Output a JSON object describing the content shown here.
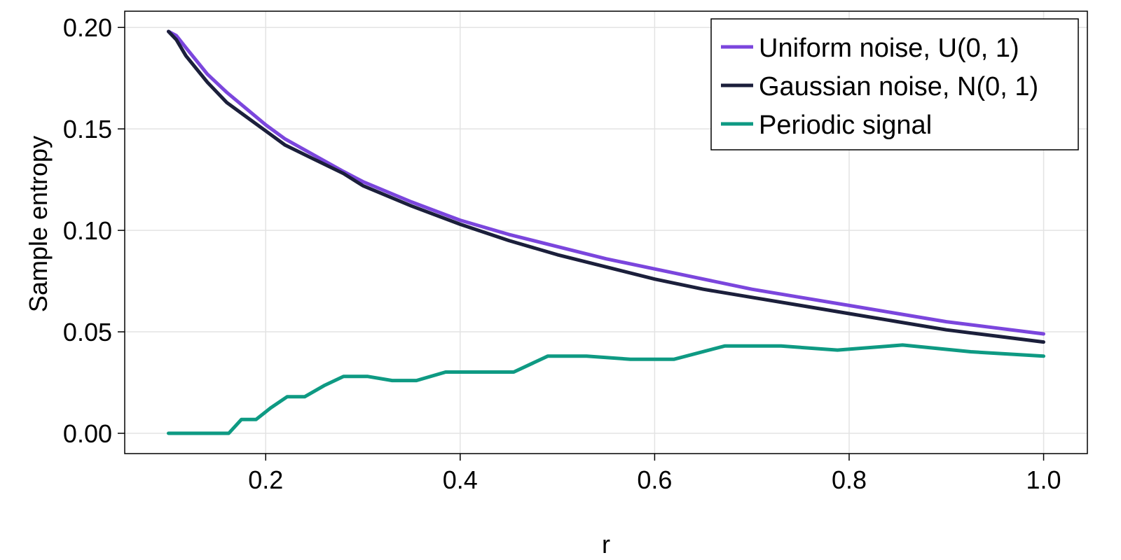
{
  "chart_data": {
    "type": "line",
    "title": "",
    "xlabel": "r",
    "ylabel": "Sample entropy",
    "xlim": [
      0.055,
      1.045
    ],
    "ylim": [
      -0.01,
      0.208
    ],
    "xticks": [
      0.2,
      0.4,
      0.6,
      0.8,
      1.0
    ],
    "xtick_labels": [
      "0.2",
      "0.4",
      "0.6",
      "0.8",
      "1.0"
    ],
    "yticks": [
      0.0,
      0.05,
      0.1,
      0.15,
      0.2
    ],
    "ytick_labels": [
      "0.00",
      "0.05",
      "0.10",
      "0.15",
      "0.20"
    ],
    "grid": true,
    "legend_position": "top-right",
    "series": [
      {
        "name": "Uniform noise, U(0, 1)",
        "color": "#7b46dd",
        "x": [
          0.1,
          0.108,
          0.118,
          0.14,
          0.16,
          0.18,
          0.2,
          0.22,
          0.25,
          0.28,
          0.3,
          0.35,
          0.4,
          0.45,
          0.5,
          0.55,
          0.6,
          0.65,
          0.7,
          0.75,
          0.8,
          0.85,
          0.9,
          0.95,
          1.0
        ],
        "y": [
          0.198,
          0.196,
          0.19,
          0.177,
          0.168,
          0.16,
          0.152,
          0.145,
          0.137,
          0.129,
          0.124,
          0.114,
          0.105,
          0.098,
          0.092,
          0.086,
          0.081,
          0.076,
          0.071,
          0.067,
          0.063,
          0.059,
          0.055,
          0.052,
          0.049
        ]
      },
      {
        "name": "Gaussian noise, N(0, 1)",
        "color": "#1b1f3b",
        "x": [
          0.1,
          0.108,
          0.118,
          0.14,
          0.16,
          0.18,
          0.2,
          0.22,
          0.25,
          0.28,
          0.3,
          0.35,
          0.4,
          0.45,
          0.5,
          0.55,
          0.6,
          0.65,
          0.7,
          0.75,
          0.8,
          0.85,
          0.9,
          0.95,
          1.0
        ],
        "y": [
          0.198,
          0.194,
          0.186,
          0.173,
          0.163,
          0.156,
          0.149,
          0.142,
          0.135,
          0.128,
          0.122,
          0.112,
          0.103,
          0.095,
          0.088,
          0.082,
          0.076,
          0.071,
          0.067,
          0.063,
          0.059,
          0.055,
          0.051,
          0.048,
          0.045
        ]
      },
      {
        "name": "Periodic signal",
        "color": "#0e9a83",
        "x": [
          0.1,
          0.162,
          0.175,
          0.19,
          0.205,
          0.222,
          0.24,
          0.26,
          0.28,
          0.305,
          0.33,
          0.355,
          0.385,
          0.41,
          0.455,
          0.49,
          0.53,
          0.575,
          0.62,
          0.672,
          0.73,
          0.788,
          0.855,
          0.925,
          1.0
        ],
        "y": [
          0.0,
          0.0,
          0.0068,
          0.0068,
          0.0125,
          0.018,
          0.018,
          0.0235,
          0.028,
          0.028,
          0.026,
          0.026,
          0.0302,
          0.0302,
          0.0302,
          0.038,
          0.038,
          0.0365,
          0.0365,
          0.043,
          0.043,
          0.041,
          0.0435,
          0.0402,
          0.038
        ]
      }
    ]
  }
}
